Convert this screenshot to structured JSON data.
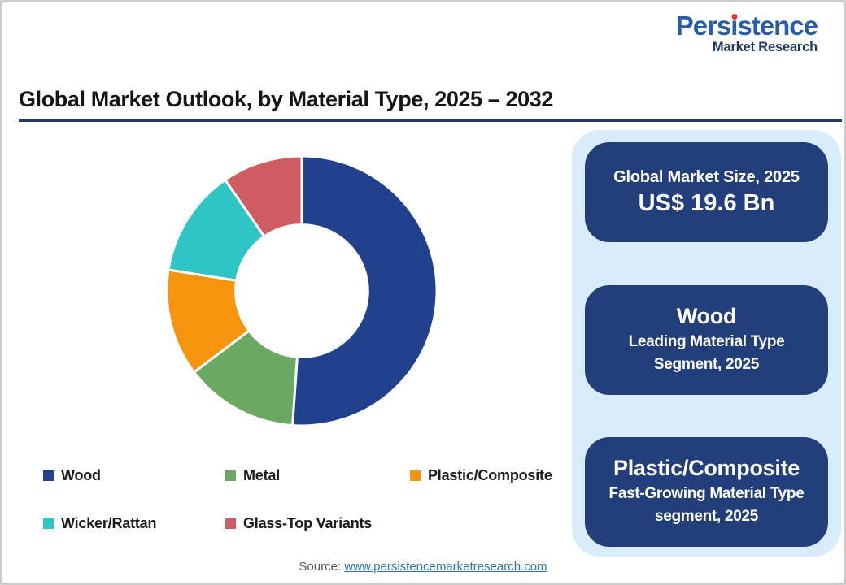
{
  "brand": {
    "name": "Persistence",
    "tagline": "Market Research",
    "name_color": "#2a5da8",
    "tagline_color": "#1f3864",
    "dot_color": "#e3393c"
  },
  "header": {
    "title": "Global Market Outlook, by Material Type, 2025 – 2032",
    "rule_color": "#1f3864"
  },
  "chart_data": {
    "type": "pie",
    "subtype": "donut",
    "title": "Global Market Outlook, by Material Type, 2025 – 2032",
    "unit": "percent share of global market, estimated from arc angles",
    "categories": [
      "Wood",
      "Metal",
      "Plastic/Composite",
      "Wicker/Rattan",
      "Glass-Top Variants"
    ],
    "values": [
      51.1,
      13.6,
      12.8,
      12.9,
      9.6
    ],
    "colors": [
      "#21418f",
      "#6ba963",
      "#f7940e",
      "#2fc5c5",
      "#d05c63"
    ],
    "start_angle_deg": 0,
    "direction": "clockwise",
    "inner_radius_ratio": 0.49,
    "legend_position": "bottom",
    "annotations": [
      "Global Market Size, 2025: US$ 19.6 Bn",
      "Wood: Leading Material Type Segment, 2025",
      "Plastic/Composite: Fast-Growing Material Type segment, 2025"
    ]
  },
  "panel": {
    "background": "#d9ecf9",
    "card_color": "#223e7b",
    "cards": [
      {
        "line1": "Global Market Size, 2025",
        "line2": "US$ 19.6 Bn"
      },
      {
        "line1": "Wood",
        "line2": "Leading Material Type Segment, 2025"
      },
      {
        "line1": "Plastic/Composite",
        "line2": "Fast-Growing Material Type segment, 2025"
      }
    ]
  },
  "footer": {
    "source_label": "Source:",
    "source_link": "www.persistencemarketresearch.com"
  }
}
